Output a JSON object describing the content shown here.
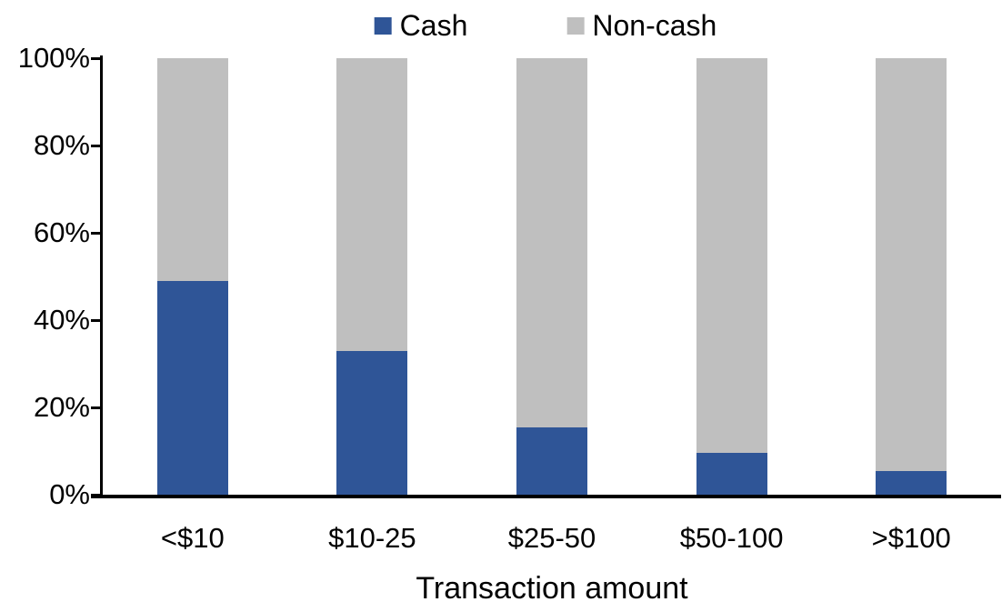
{
  "chart_data": {
    "type": "bar",
    "stacked": true,
    "percent_stacked": true,
    "title": "",
    "xlabel": "Transaction amount",
    "ylabel": "",
    "categories": [
      "<$10",
      "$10-25",
      "$25-50",
      "$50-100",
      ">$100"
    ],
    "series": [
      {
        "name": "Cash",
        "color": "#2F5597",
        "values": [
          49,
          33,
          15.5,
          9.5,
          5.5
        ]
      },
      {
        "name": "Non-cash",
        "color": "#BFBFBF",
        "values": [
          51,
          67,
          84.5,
          90.5,
          94.5
        ]
      }
    ],
    "y_axis": {
      "min": 0,
      "max": 100,
      "tick_step": 20,
      "tick_labels": [
        "0%",
        "20%",
        "40%",
        "60%",
        "80%",
        "100%"
      ],
      "format": "percent"
    },
    "legend_position": "top",
    "grid": false,
    "axis_color": "#000000",
    "background_color": "#FFFFFF"
  }
}
